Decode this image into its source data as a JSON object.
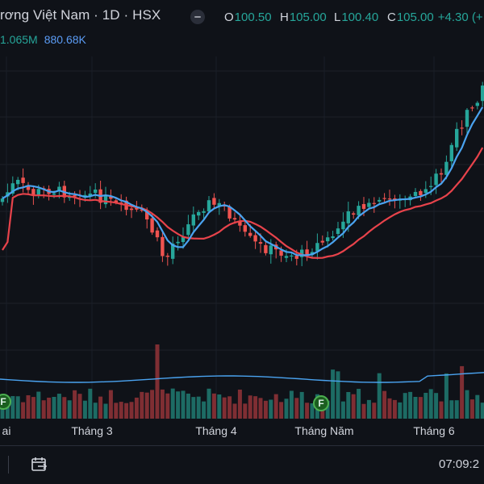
{
  "header": {
    "symbol_title": "rơng Việt Nam · 1D · HSX",
    "ohlc": [
      {
        "key": "O",
        "value": "100.50"
      },
      {
        "key": "H",
        "value": "105.00"
      },
      {
        "key": "L",
        "value": "100.40"
      },
      {
        "key": "C",
        "value": "105.00"
      }
    ],
    "change": "+4.30 (+",
    "volume": "1.065M",
    "volume_ma": "880.68K"
  },
  "colors": {
    "background": "#0f1218",
    "up": "#26a69a",
    "down": "#ef5350",
    "ma_fast": "#4aa3f0",
    "ma_slow": "#e8434b",
    "vol_up": "#1d6b64",
    "vol_down": "#7f2e33"
  },
  "time_axis": {
    "labels": [
      "ai",
      "Tháng 3",
      "Tháng 4",
      "Tháng Năm",
      "Tháng 6"
    ]
  },
  "markers": [
    {
      "label": "F"
    },
    {
      "label": "F"
    }
  ],
  "status_bar": {
    "time": "07:09:2",
    "tool_icon": "calendar-range-icon"
  }
}
